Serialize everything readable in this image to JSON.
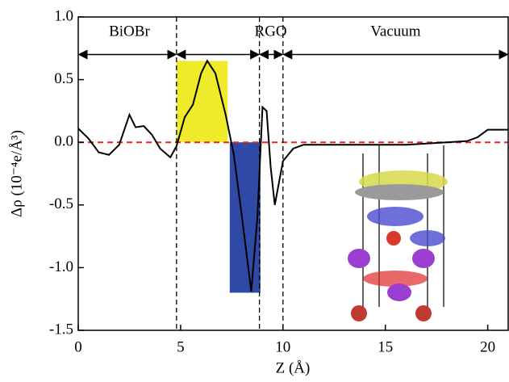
{
  "chart_data": {
    "type": "line",
    "x_label": "Z (Å)",
    "y_label": "Δρ (10⁻⁴e/Å³)",
    "xlim": [
      0,
      21
    ],
    "ylim": [
      -1.5,
      1.0
    ],
    "xticks": [
      0,
      5,
      10,
      15,
      20
    ],
    "yticks": [
      -1.5,
      {
        "value": -1.0,
        "label": "-1.0"
      },
      -0.5,
      {
        "value": 0.0,
        "label": "0.0"
      },
      0.5,
      {
        "value": 1.0,
        "label": "1.0"
      }
    ],
    "series": [
      {
        "color": "#000000",
        "x": [
          0,
          0.5,
          1,
          1.5,
          2,
          2.5,
          2.8,
          3.2,
          3.6,
          4,
          4.5,
          4.8,
          5.2,
          5.6,
          6,
          6.3,
          6.7,
          7.2,
          7.6,
          8,
          8.45,
          8.75,
          9.0,
          9.2,
          9.4,
          9.6,
          10,
          10.5,
          11,
          12,
          14,
          16,
          18,
          19,
          19.5,
          20,
          20.5,
          21
        ],
        "values": [
          0.11,
          0.03,
          -0.08,
          -0.1,
          -0.02,
          0.22,
          0.12,
          0.13,
          0.06,
          -0.05,
          -0.12,
          -0.03,
          0.2,
          0.3,
          0.55,
          0.65,
          0.55,
          0.22,
          -0.1,
          -0.6,
          -1.19,
          -0.6,
          0.28,
          0.25,
          -0.2,
          -0.5,
          -0.15,
          -0.05,
          -0.02,
          -0.02,
          -0.02,
          -0.02,
          0.0,
          0.01,
          0.04,
          0.1,
          0.1,
          0.1
        ]
      }
    ],
    "bars": [
      {
        "x": [
          4.8,
          7.3
        ],
        "value": 0.65,
        "color": "#f0eb2a"
      },
      {
        "x": [
          7.4,
          8.9
        ],
        "value": -1.2,
        "color": "#2e4aa6"
      }
    ],
    "vlines": [
      4.8,
      8.85,
      10.0
    ],
    "zero_line_color": "#e8261e",
    "spans": [
      [
        0,
        4.8
      ],
      [
        4.8,
        8.85
      ],
      [
        8.85,
        10.0
      ],
      [
        10.0,
        21
      ]
    ],
    "span_level": 0.7,
    "regions": [
      {
        "label": "BiOBr",
        "x": 2.5
      },
      {
        "label": "RGO",
        "x": 9.4
      },
      {
        "label": "Vacuum",
        "x": 15.5
      }
    ]
  }
}
